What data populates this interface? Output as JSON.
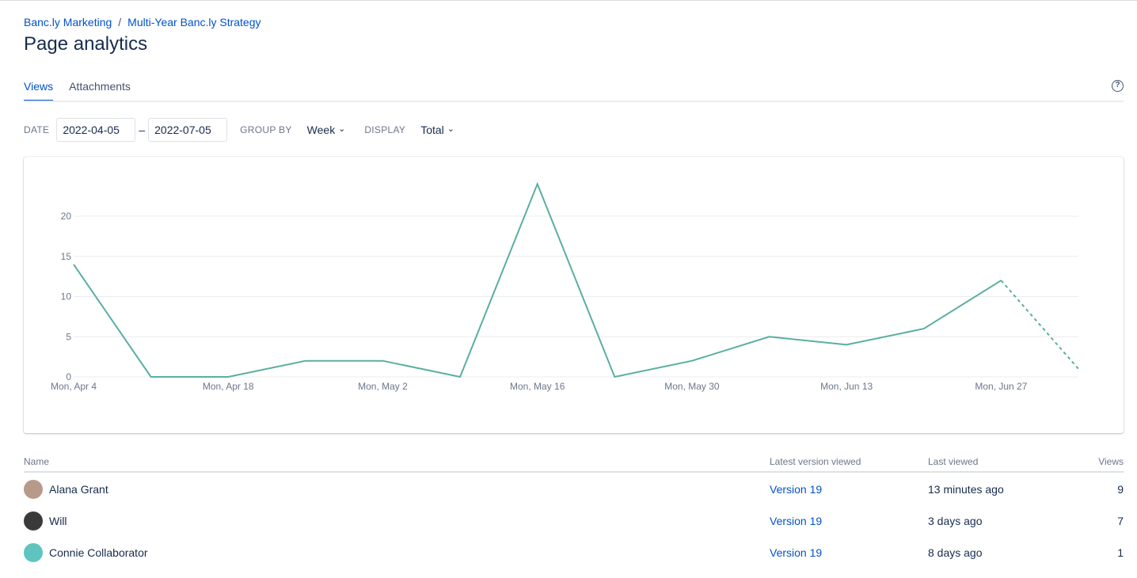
{
  "breadcrumb": [
    "Banc.ly Marketing",
    "Multi-Year Banc.ly Strategy"
  ],
  "breadcrumb_separator": "/",
  "title": "Page analytics",
  "tabs": [
    {
      "label": "Views",
      "active": true
    },
    {
      "label": "Attachments",
      "active": false
    }
  ],
  "help_icon": "?",
  "filters": {
    "date_label": "DATE",
    "date_from": "2022-04-05",
    "date_sep": "–",
    "date_to": "2022-07-05",
    "group_by_label": "GROUP BY",
    "group_by": "Week",
    "display_label": "DISPLAY",
    "display": "Total",
    "chevron": "⌄"
  },
  "chart_data": {
    "type": "line",
    "x": [
      "Mon, Apr 4",
      "Mon, Apr 11",
      "Mon, Apr 18",
      "Mon, Apr 25",
      "Mon, May 2",
      "Mon, May 9",
      "Mon, May 16",
      "Mon, May 23",
      "Mon, May 30",
      "Mon, Jun 6",
      "Mon, Jun 13",
      "Mon, Jun 20",
      "Mon, Jun 27",
      "Mon, Jul 4"
    ],
    "x_tick_labels": [
      "Mon, Apr 4",
      "Mon, Apr 18",
      "Mon, May 2",
      "Mon, May 16",
      "Mon, May 30",
      "Mon, Jun 13",
      "Mon, Jun 27"
    ],
    "values": [
      14,
      0,
      0,
      2,
      2,
      0,
      24,
      0,
      2,
      5,
      4,
      6,
      12,
      1
    ],
    "partial_last_point": true,
    "y_ticks": [
      0,
      5,
      10,
      15,
      20
    ],
    "ylim": [
      0,
      25
    ],
    "grid": true,
    "color": "#5aaea3"
  },
  "table": {
    "headers": {
      "name": "Name",
      "version": "Latest version viewed",
      "last_viewed": "Last viewed",
      "views": "Views"
    },
    "rows": [
      {
        "name": "Alana Grant",
        "version": "Version 19",
        "last_viewed": "13 minutes ago",
        "views": "9"
      },
      {
        "name": "Will",
        "version": "Version 19",
        "last_viewed": "3 days ago",
        "views": "7"
      },
      {
        "name": "Connie Collaborator",
        "version": "Version 19",
        "last_viewed": "8 days ago",
        "views": "1"
      }
    ]
  }
}
